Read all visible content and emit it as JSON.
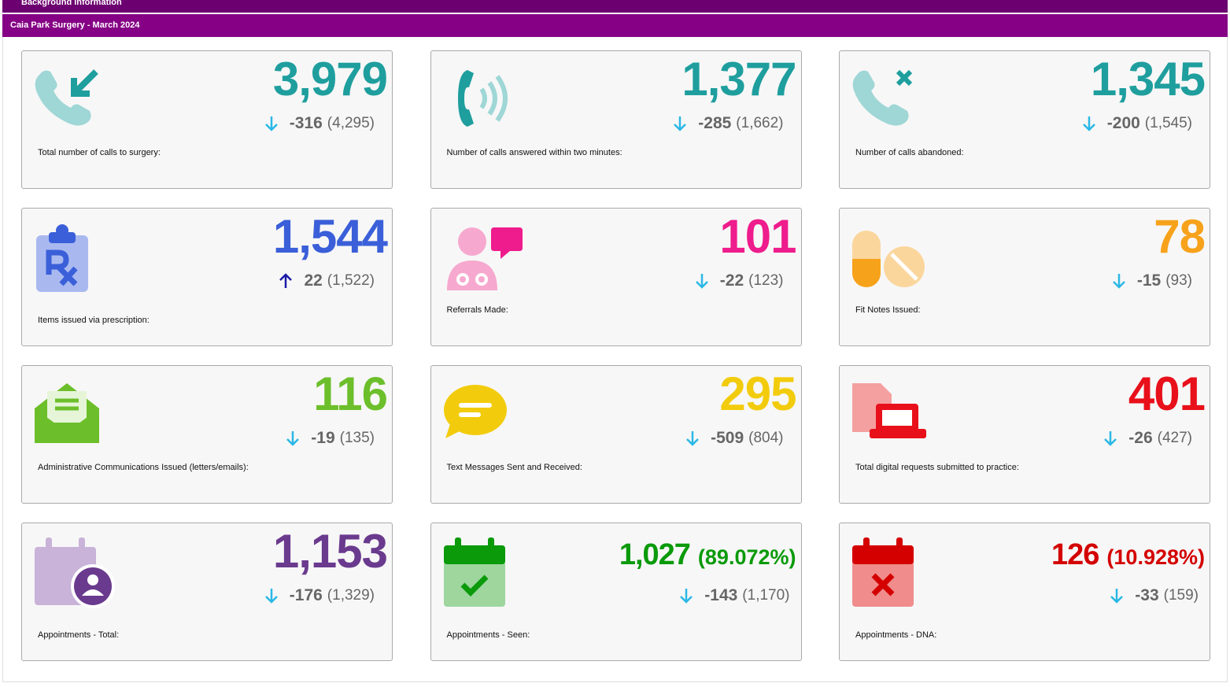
{
  "header": {
    "top_bar": "Background information",
    "title": "Caia Park Surgery - March 2024"
  },
  "cards": [
    {
      "value": "3,979",
      "change": "-316",
      "previous": "(4,295)",
      "label": "Total number of calls to surgery:"
    },
    {
      "value": "1,377",
      "change": "-285",
      "previous": "(1,662)",
      "label": "Number of calls answered within two minutes:"
    },
    {
      "value": "1,345",
      "change": "-200",
      "previous": "(1,545)",
      "label": "Number of calls abandoned:"
    },
    {
      "value": "1,544",
      "change": "22",
      "previous": "(1,522)",
      "label": "Items issued via prescription:"
    },
    {
      "value": "101",
      "change": "-22",
      "previous": "(123)",
      "label": "Referrals Made:"
    },
    {
      "value": "78",
      "change": "-15",
      "previous": "(93)",
      "label": "Fit Notes Issued:"
    },
    {
      "value": "116",
      "change": "-19",
      "previous": "(135)",
      "label": "Administrative Communications Issued (letters/emails):"
    },
    {
      "value": "295",
      "change": "-509",
      "previous": "(804)",
      "label": "Text Messages Sent and Received:"
    },
    {
      "value": "401",
      "change": "-26",
      "previous": "(427)",
      "label": "Total digital requests submitted to practice:"
    },
    {
      "value": "1,153",
      "change": "-176",
      "previous": "(1,329)",
      "label": "Appointments - Total:"
    },
    {
      "value": "1,027",
      "percent": "(89.072%)",
      "change": "-143",
      "previous": "(1,170)",
      "label": "Appointments - Seen:"
    },
    {
      "value": "126",
      "percent": "(10.928%)",
      "change": "-33",
      "previous": "(159)",
      "label": "Appointments - DNA:"
    }
  ]
}
